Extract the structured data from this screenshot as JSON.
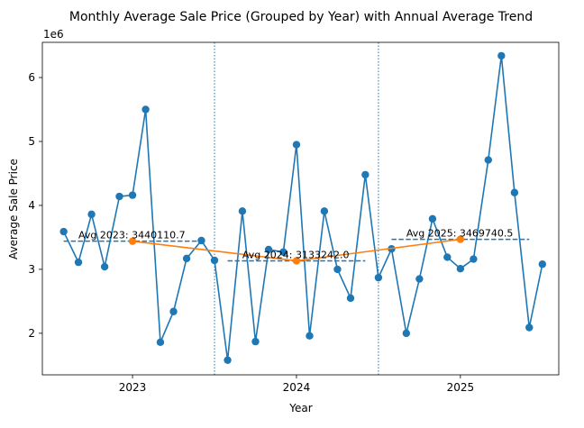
{
  "chart_data": {
    "type": "line",
    "title": "Monthly Average Sale Price (Grouped by Year) with Annual Average Trend",
    "xlabel": "Year",
    "ylabel": "Average Sale Price",
    "y_offset_text": "1e6",
    "xlim": [
      2022.45,
      2025.6
    ],
    "ylim": [
      1350000,
      6550000
    ],
    "grid": false,
    "x_ticks": [
      2023,
      2024,
      2025
    ],
    "x_tick_labels": [
      "2023",
      "2024",
      "2025"
    ],
    "y_ticks": [
      2000000,
      3000000,
      4000000,
      5000000,
      6000000
    ],
    "y_tick_labels": [
      "2",
      "3",
      "4",
      "5",
      "6"
    ],
    "year_dividers": [
      2023.5,
      2024.5
    ],
    "colors": {
      "monthly": "#1f77b4",
      "annual_trend": "#ff7f0e",
      "avg_lines": "#1f77b4",
      "dividers": "#1f77b4"
    },
    "series": [
      {
        "role": "monthly",
        "x": [
          2022.58,
          2022.67,
          2022.75,
          2022.83,
          2022.92,
          2023.0,
          2023.08,
          2023.17,
          2023.25,
          2023.33,
          2023.42,
          2023.5,
          2023.58,
          2023.67,
          2023.75,
          2023.83,
          2023.92,
          2024.0,
          2024.08,
          2024.17,
          2024.25,
          2024.33,
          2024.42,
          2024.5,
          2024.58,
          2024.67,
          2024.75,
          2024.83,
          2024.92,
          2025.0,
          2025.08,
          2025.17,
          2025.25,
          2025.33,
          2025.42,
          2025.5
        ],
        "values": [
          3590000,
          3110000,
          3860000,
          3040000,
          4140000,
          4160000,
          5500000,
          1860000,
          2340000,
          3170000,
          3450000,
          3140000,
          1580000,
          3910000,
          1870000,
          3310000,
          3270000,
          4950000,
          1960000,
          3910000,
          3000000,
          2550000,
          4480000,
          2870000,
          3320000,
          2000000,
          2850000,
          3790000,
          3190000,
          3010000,
          3160000,
          4710000,
          6340000,
          4200000,
          2090000,
          3080000
        ]
      },
      {
        "role": "annual_trend",
        "x": [
          2023,
          2024,
          2025
        ],
        "values": [
          3440110.7,
          3133242.0,
          3469740.5
        ]
      }
    ],
    "annual_averages": [
      {
        "x_range": [
          2022.58,
          2023.42
        ],
        "value": 3440110.7,
        "label": "Avg 2023: 3440110.7",
        "label_x": 2022.67
      },
      {
        "x_range": [
          2023.58,
          2024.42
        ],
        "value": 3133242.0,
        "label": "Avg 2024: 3133242.0",
        "label_x": 2023.67
      },
      {
        "x_range": [
          2024.58,
          2025.42
        ],
        "value": 3469740.5,
        "label": "Avg 2025: 3469740.5",
        "label_x": 2024.67
      }
    ]
  }
}
